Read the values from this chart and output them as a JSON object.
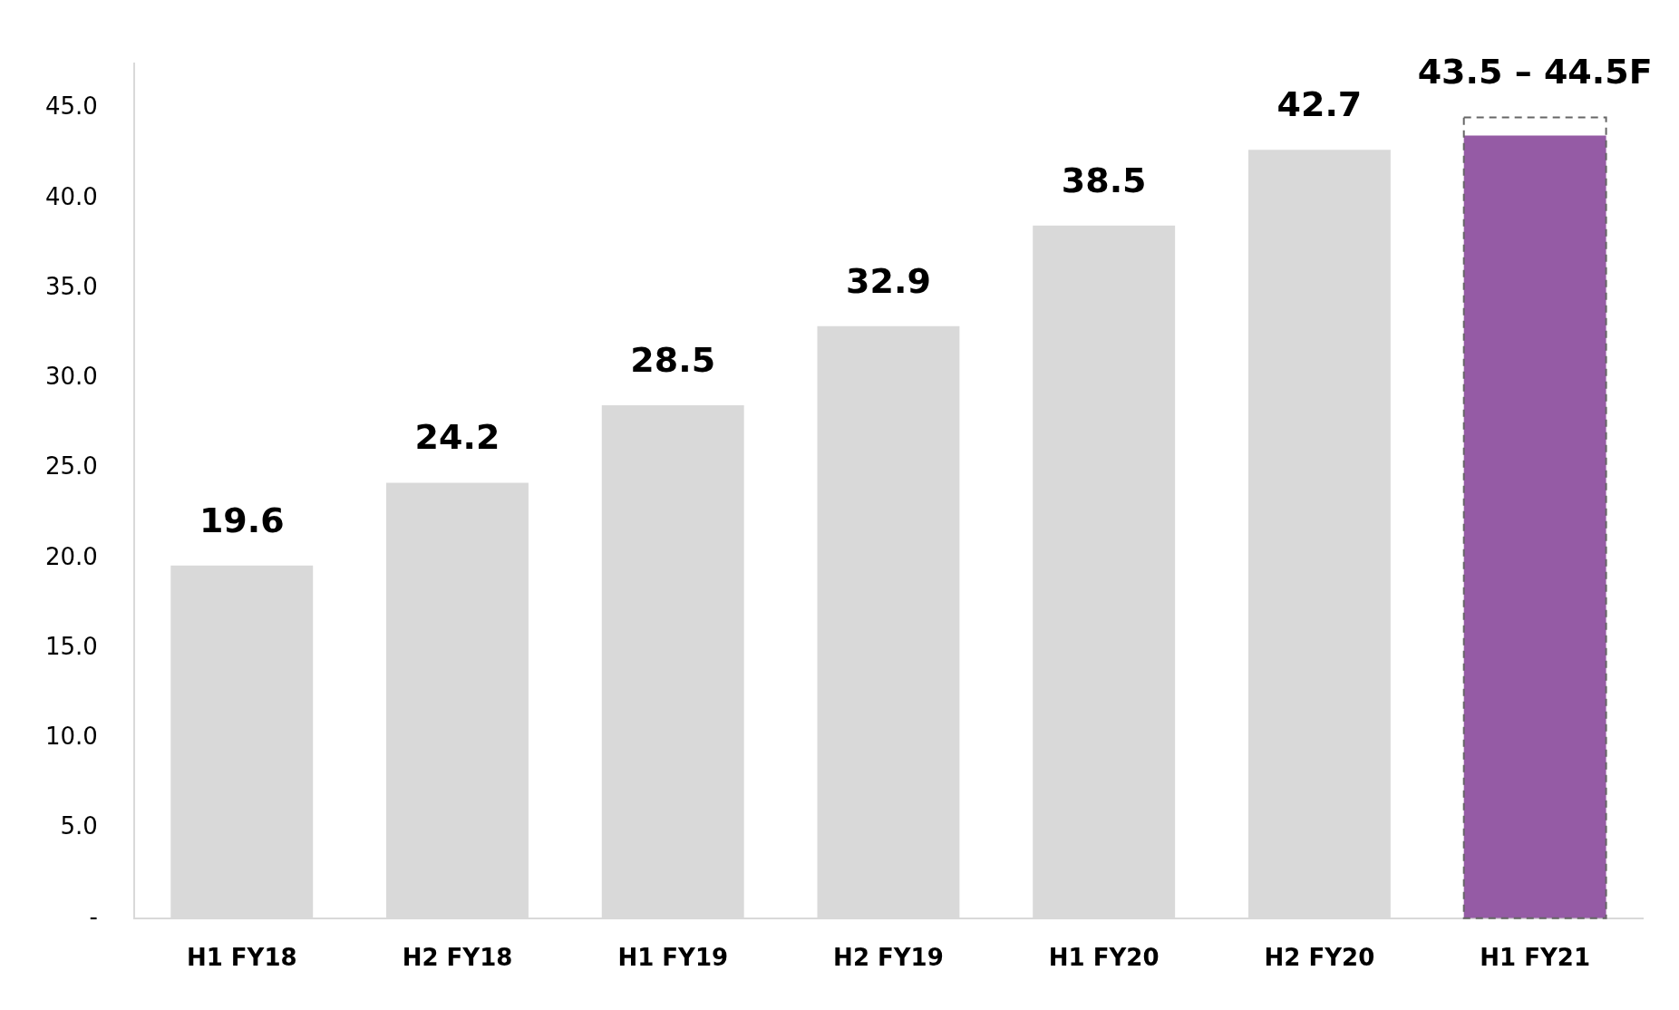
{
  "chart_data": {
    "type": "bar",
    "categories": [
      "H1 FY18",
      "H2 FY18",
      "H1 FY19",
      "H2 FY19",
      "H1 FY20",
      "H2 FY20",
      "H1 FY21"
    ],
    "series": [
      {
        "colors": [
          "#d9d9d9",
          "#d9d9d9",
          "#d9d9d9",
          "#d9d9d9",
          "#d9d9d9",
          "#d9d9d9",
          "#955ba5"
        ],
        "values": [
          19.6,
          24.2,
          28.5,
          32.9,
          38.5,
          42.7,
          43.5
        ],
        "value_labels": [
          "19.6",
          "24.2",
          "28.5",
          "32.9",
          "38.5",
          "42.7",
          "43.5 – 44.5F"
        ]
      },
      {
        "color": "#666666",
        "values": [
          null,
          null,
          null,
          null,
          null,
          null,
          44.5
        ],
        "line_style": "dashed"
      }
    ],
    "ylim": [
      0,
      47.5
    ],
    "yticks": [
      {
        "value": 0,
        "label": "-"
      },
      {
        "value": 5,
        "label": "5.0"
      },
      {
        "value": 10,
        "label": "10.0"
      },
      {
        "value": 15,
        "label": "15.0"
      },
      {
        "value": 20,
        "label": "20.0"
      },
      {
        "value": 25,
        "label": "25.0"
      },
      {
        "value": 30,
        "label": "30.0"
      },
      {
        "value": 35,
        "label": "35.0"
      },
      {
        "value": 40,
        "label": "40.0"
      },
      {
        "value": 45,
        "label": "45.0"
      }
    ],
    "grid": false,
    "legend": false
  }
}
